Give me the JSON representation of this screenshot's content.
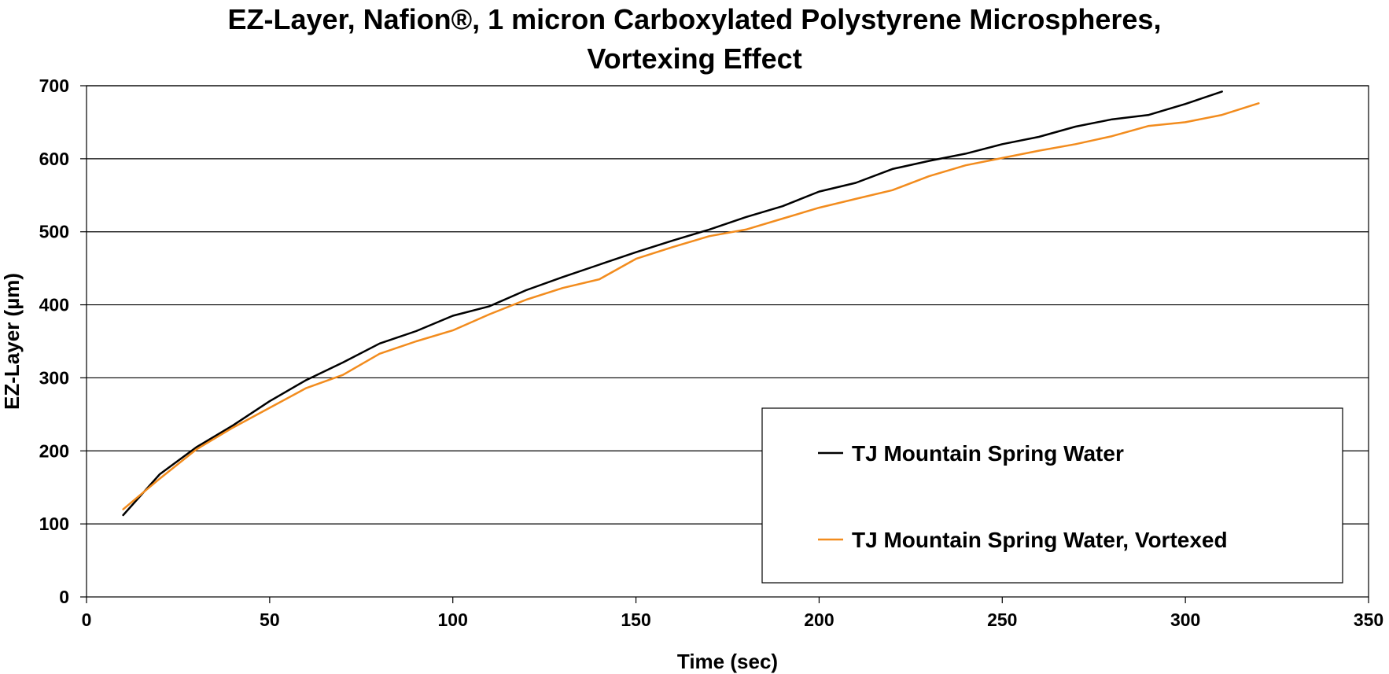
{
  "chart_data": {
    "type": "line",
    "title_lines": [
      "EZ-Layer, Nafion®, 1 micron Carboxylated Polystyrene Microspheres,",
      "Vortexing Effect"
    ],
    "xlabel": "Time (sec)",
    "ylabel": "EZ-Layer (µm)",
    "xlim": [
      0,
      350
    ],
    "ylim": [
      0,
      700
    ],
    "x_ticks": [
      0,
      50,
      100,
      150,
      200,
      250,
      300,
      350
    ],
    "y_ticks": [
      0,
      100,
      200,
      300,
      400,
      500,
      600,
      700
    ],
    "grid": "horizontal",
    "legend_position": "bottom-right",
    "series": [
      {
        "name": "TJ Mountain Spring Water",
        "color": "#000000",
        "x": [
          10,
          20,
          30,
          40,
          50,
          60,
          70,
          80,
          90,
          100,
          110,
          120,
          130,
          140,
          150,
          160,
          170,
          180,
          190,
          200,
          210,
          220,
          230,
          240,
          250,
          260,
          270,
          280,
          290,
          300,
          310
        ],
        "y": [
          112,
          168,
          205,
          235,
          268,
          297,
          321,
          347,
          364,
          385,
          398,
          420,
          438,
          455,
          472,
          488,
          503,
          520,
          535,
          555,
          567,
          586,
          597,
          607,
          620,
          630,
          644,
          654,
          660,
          675,
          692
        ]
      },
      {
        "name": "TJ Mountain Spring Water, Vortexed",
        "color": "#F28C1E",
        "x": [
          10,
          20,
          30,
          40,
          50,
          60,
          70,
          80,
          90,
          100,
          110,
          120,
          130,
          140,
          150,
          160,
          170,
          180,
          190,
          200,
          210,
          220,
          230,
          240,
          250,
          260,
          270,
          280,
          290,
          300,
          310,
          320
        ],
        "y": [
          120,
          162,
          202,
          232,
          259,
          286,
          304,
          333,
          350,
          365,
          387,
          407,
          423,
          435,
          463,
          479,
          494,
          503,
          518,
          533,
          545,
          557,
          576,
          591,
          601,
          611,
          620,
          631,
          645,
          650,
          660,
          676
        ]
      }
    ]
  }
}
